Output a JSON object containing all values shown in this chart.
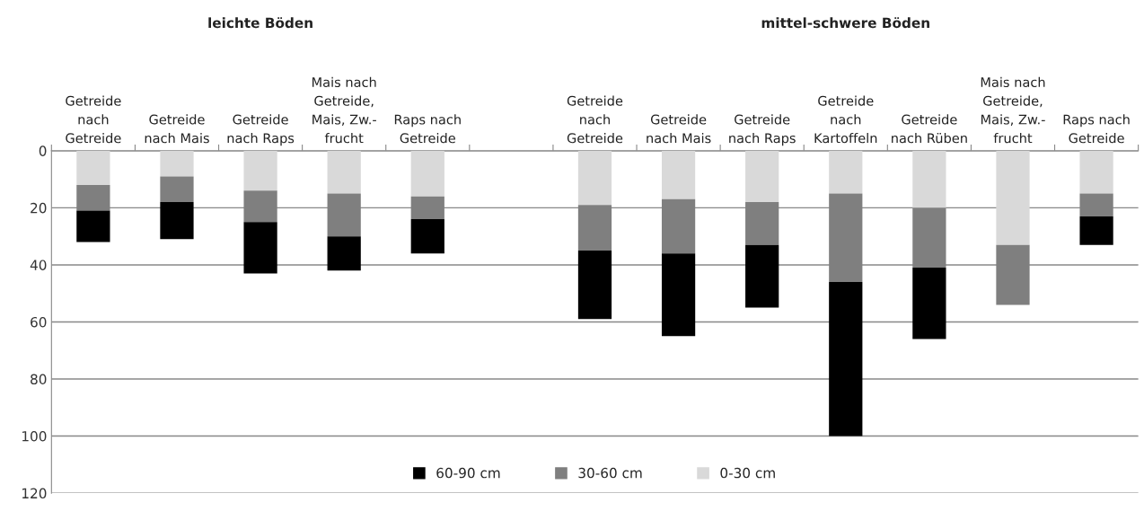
{
  "chart_data": {
    "type": "bar",
    "stacked": true,
    "categories": [
      "Getreide\nnach\nGetreide",
      "Getreide\nnach Mais",
      "Getreide\nnach Raps",
      "Mais nach\nGetreide,\nMais, Zw.-\nfrucht",
      "Raps nach\nGetreide",
      null,
      "Getreide\nnach\nGetreide",
      "Getreide\nnach Mais",
      "Getreide\nnach Raps",
      "Getreide\nnach\nKartoffeln",
      "Getreide\nnach Rüben",
      "Mais nach\nGetreide,\nMais, Zw.-\nfrucht",
      "Raps nach\nGetreide"
    ],
    "series": [
      {
        "name": "0-30 cm",
        "color": "#d9d9d9",
        "values": [
          12,
          9,
          14,
          15,
          16,
          null,
          19,
          17,
          18,
          15,
          20,
          33,
          15
        ]
      },
      {
        "name": "30-60 cm",
        "color": "#7f7f7f",
        "values": [
          9,
          9,
          11,
          15,
          8,
          null,
          16,
          19,
          15,
          31,
          21,
          21,
          8
        ]
      },
      {
        "name": "60-90 cm",
        "color": "#000000",
        "values": [
          11,
          13,
          18,
          12,
          12,
          null,
          24,
          29,
          22,
          54,
          25,
          null,
          10
        ]
      }
    ],
    "ylim": [
      120,
      0
    ],
    "yticks": [
      0,
      20,
      40,
      60,
      80,
      100,
      120
    ],
    "grid": "y",
    "legend": "bottom",
    "annotations": [
      "leichte Böden",
      "mittel-schwere Böden"
    ]
  }
}
